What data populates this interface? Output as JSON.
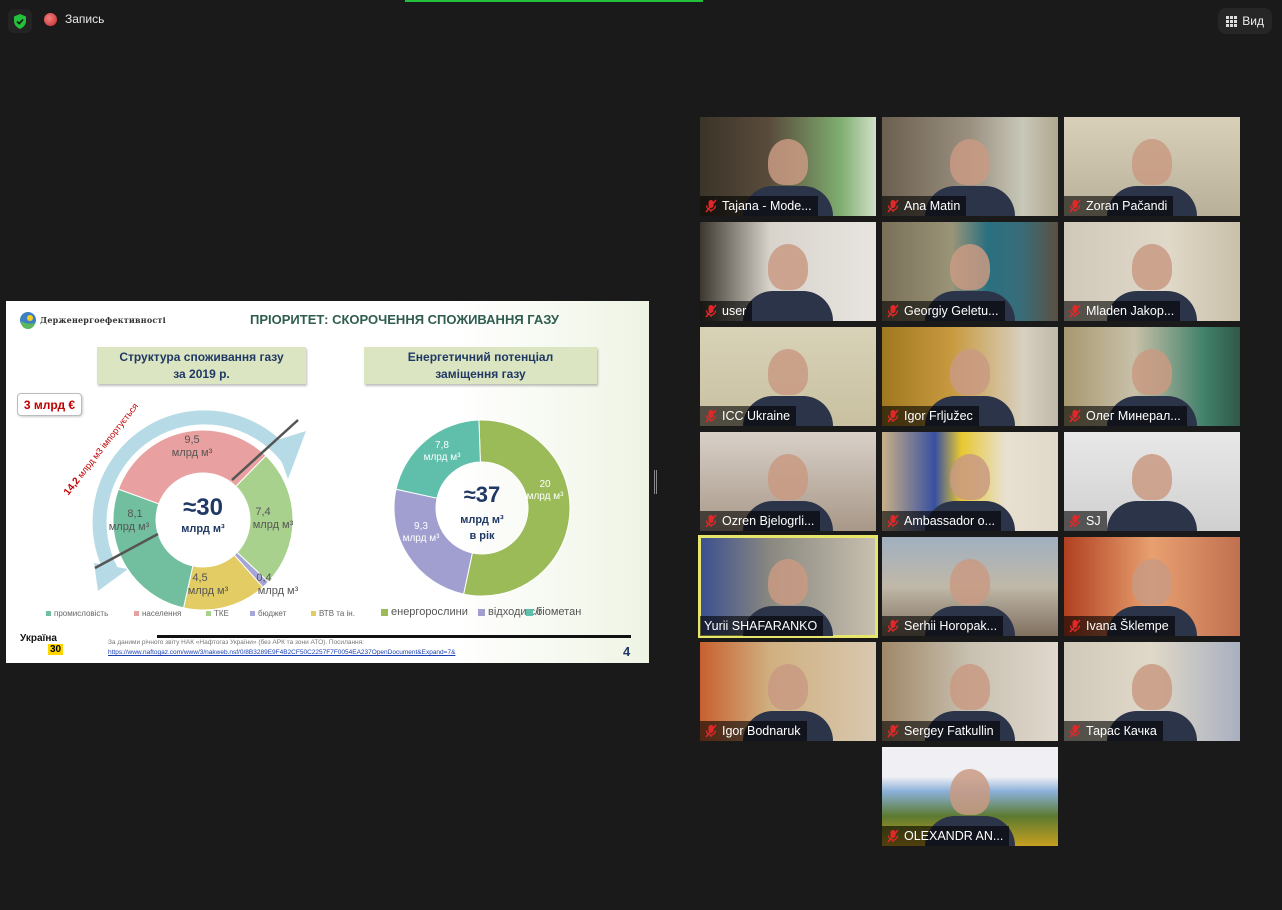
{
  "topbar": {
    "security_icon": "shield-check-icon",
    "recording_label": "Запись",
    "view_label": "Вид",
    "view_icon": "grid-icon"
  },
  "slide": {
    "org_name": "Держенергоефективності",
    "title": "ПРІОРИТЕТ: СКОРОЧЕННЯ СПОЖИВАННЯ ГАЗУ",
    "box1": {
      "line1": "Структура споживання газу",
      "line2": "за 2019 р."
    },
    "box2": {
      "line1": "Енергетичний потенціал",
      "line2": "заміщення газу"
    },
    "callout": "3 млрд €",
    "import_amount": "14,2",
    "import_text": "млрд м3  імпортується",
    "unit": "млрд м³",
    "footnote": "За  даними річного звіту НАК «Нафтогаз України» (без АРК та зони АТО). Посилання:",
    "url": "https://www.naftogaz.com/www/3/nakweb.nsf/0/8B3289E9F4B2CF50C2257F7F0054EA237OpenDocument&Expand=7&",
    "page_number": "4",
    "ukraine_logo": "Україна",
    "ukraine_logo_num": "30"
  },
  "chart_data": [
    {
      "type": "pie",
      "donut": true,
      "title": "Структура споживання газу за 2019 р.",
      "center_label": "≈30",
      "center_unit": "млрд м³",
      "categories": [
        "населення",
        "ТКЕ",
        "бюджет",
        "ВТВ та ін.",
        "промисловість"
      ],
      "values": [
        9.5,
        7.4,
        0.4,
        4.5,
        8.1
      ],
      "value_labels": [
        "9,5",
        "7,4",
        "0,4",
        "4,5",
        "8,1"
      ],
      "colors": [
        "#e8a0a0",
        "#a9d18e",
        "#a5a5d8",
        "#e2cc63",
        "#72bfa0"
      ],
      "legend": [
        {
          "label": "промисловість",
          "color": "#72bfa0"
        },
        {
          "label": "населення",
          "color": "#e8a0a0"
        },
        {
          "label": "ТКЕ",
          "color": "#a9d18e"
        },
        {
          "label": "бюджет",
          "color": "#a5a5d8"
        },
        {
          "label": "ВТВ та ін.",
          "color": "#e2cc63"
        }
      ],
      "legend_position": "bottom"
    },
    {
      "type": "pie",
      "donut": true,
      "title": "Енергетичний потенціал заміщення газу",
      "center_label": "≈37",
      "center_unit": "млрд м³",
      "center_sub": "в рік",
      "categories": [
        "енергорослини",
        "відходи с/г",
        "біометан"
      ],
      "values": [
        20,
        9.3,
        7.8
      ],
      "value_labels": [
        "20",
        "9,3",
        "7,8"
      ],
      "colors": [
        "#9bbb59",
        "#a09fd0",
        "#5fbfaa"
      ],
      "legend": [
        {
          "label": "енергорослини",
          "color": "#9bbb59"
        },
        {
          "label": "відходи с/г",
          "color": "#a09fd0"
        },
        {
          "label": "біометан",
          "color": "#5fbfaa"
        }
      ],
      "legend_position": "bottom"
    }
  ],
  "participants": [
    {
      "name": "Tajana - Mode...",
      "muted": true
    },
    {
      "name": "Ana Matin",
      "muted": true
    },
    {
      "name": "Zoran Pačandi",
      "muted": true
    },
    {
      "name": "user",
      "muted": true
    },
    {
      "name": "Georgiy Geletu...",
      "muted": true
    },
    {
      "name": "Mladen Jakop...",
      "muted": true
    },
    {
      "name": "ICC Ukraine",
      "muted": true
    },
    {
      "name": "Igor Frljužec",
      "muted": true
    },
    {
      "name": "Олег Минерал...",
      "muted": true
    },
    {
      "name": "Ozren Bjelogrli...",
      "muted": true
    },
    {
      "name": "Ambassador o...",
      "muted": true
    },
    {
      "name": "SJ",
      "muted": true
    },
    {
      "name": "Yurii SHAFARANKO",
      "muted": false,
      "active_speaker": true
    },
    {
      "name": "Serhii Horopak...",
      "muted": true
    },
    {
      "name": "Ivana Šklempe",
      "muted": true
    },
    {
      "name": "Igor Bodnaruk",
      "muted": true
    },
    {
      "name": "Sergey Fatkullin",
      "muted": true
    },
    {
      "name": "Тарас Качка",
      "muted": true
    },
    {
      "name": "OLEXANDR AN...",
      "muted": true
    }
  ],
  "colors": {
    "active_speaker_border": "#e6e66a",
    "mute_icon": "#e02828",
    "recording": "#d03a3a",
    "security": "#23c03b"
  }
}
